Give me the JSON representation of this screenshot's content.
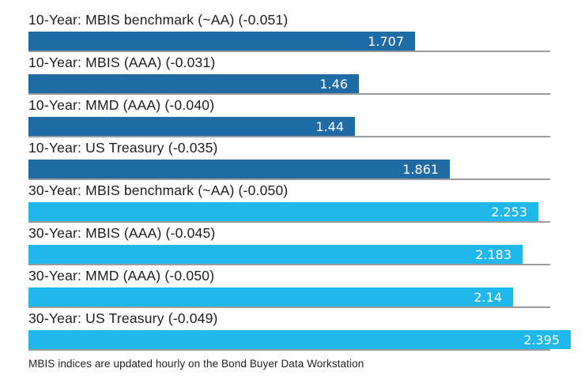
{
  "chart_data": {
    "type": "bar",
    "orientation": "horizontal",
    "title": "",
    "xlabel": "",
    "ylabel": "",
    "xlim": [
      0,
      2.5
    ],
    "grid": false,
    "legend": "none",
    "categories": [
      "10-Year: MBIS benchmark (~AA) (-0.051)",
      "10-Year: MBIS (AAA) (-0.031)",
      "10-Year: MMD (AAA) (-0.040)",
      "10-Year: US Treasury (-0.035)",
      "30-Year: MBIS benchmark (~AA) (-0.050)",
      "30-Year: MBIS (AAA) (-0.045)",
      "30-Year: MMD (AAA) (-0.050)",
      "30-Year: US Treasury (-0.049)"
    ],
    "values": [
      1.707,
      1.46,
      1.44,
      1.861,
      2.253,
      2.183,
      2.14,
      2.395
    ],
    "rows": [
      {
        "label": "10-Year: MBIS benchmark (~AA) (-0.051)",
        "value": 1.707,
        "display": "1.707",
        "group": "10-year"
      },
      {
        "label": "10-Year: MBIS (AAA) (-0.031)",
        "value": 1.46,
        "display": "1.46",
        "group": "10-year"
      },
      {
        "label": "10-Year: MMD (AAA) (-0.040)",
        "value": 1.44,
        "display": "1.44",
        "group": "10-year"
      },
      {
        "label": "10-Year: US Treasury (-0.035)",
        "value": 1.861,
        "display": "1.861",
        "group": "10-year"
      },
      {
        "label": "30-Year: MBIS benchmark (~AA) (-0.050)",
        "value": 2.253,
        "display": "2.253",
        "group": "30-year"
      },
      {
        "label": "30-Year: MBIS (AAA) (-0.045)",
        "value": 2.183,
        "display": "2.183",
        "group": "30-year"
      },
      {
        "label": "30-Year: MMD (AAA) (-0.050)",
        "value": 2.14,
        "display": "2.14",
        "group": "30-year"
      },
      {
        "label": "30-Year: US Treasury (-0.049)",
        "value": 2.395,
        "display": "2.395",
        "group": "30-year"
      }
    ],
    "colors": {
      "ten_year_bar": "#1F6BA5",
      "thirty_year_bar": "#20B8EA",
      "value_text": "#ffffff",
      "label_text": "#1d1d1d",
      "baseline": "#9b9b9b"
    },
    "footer": "MBIS indices are updated hourly on the Bond Buyer Data Workstation"
  }
}
